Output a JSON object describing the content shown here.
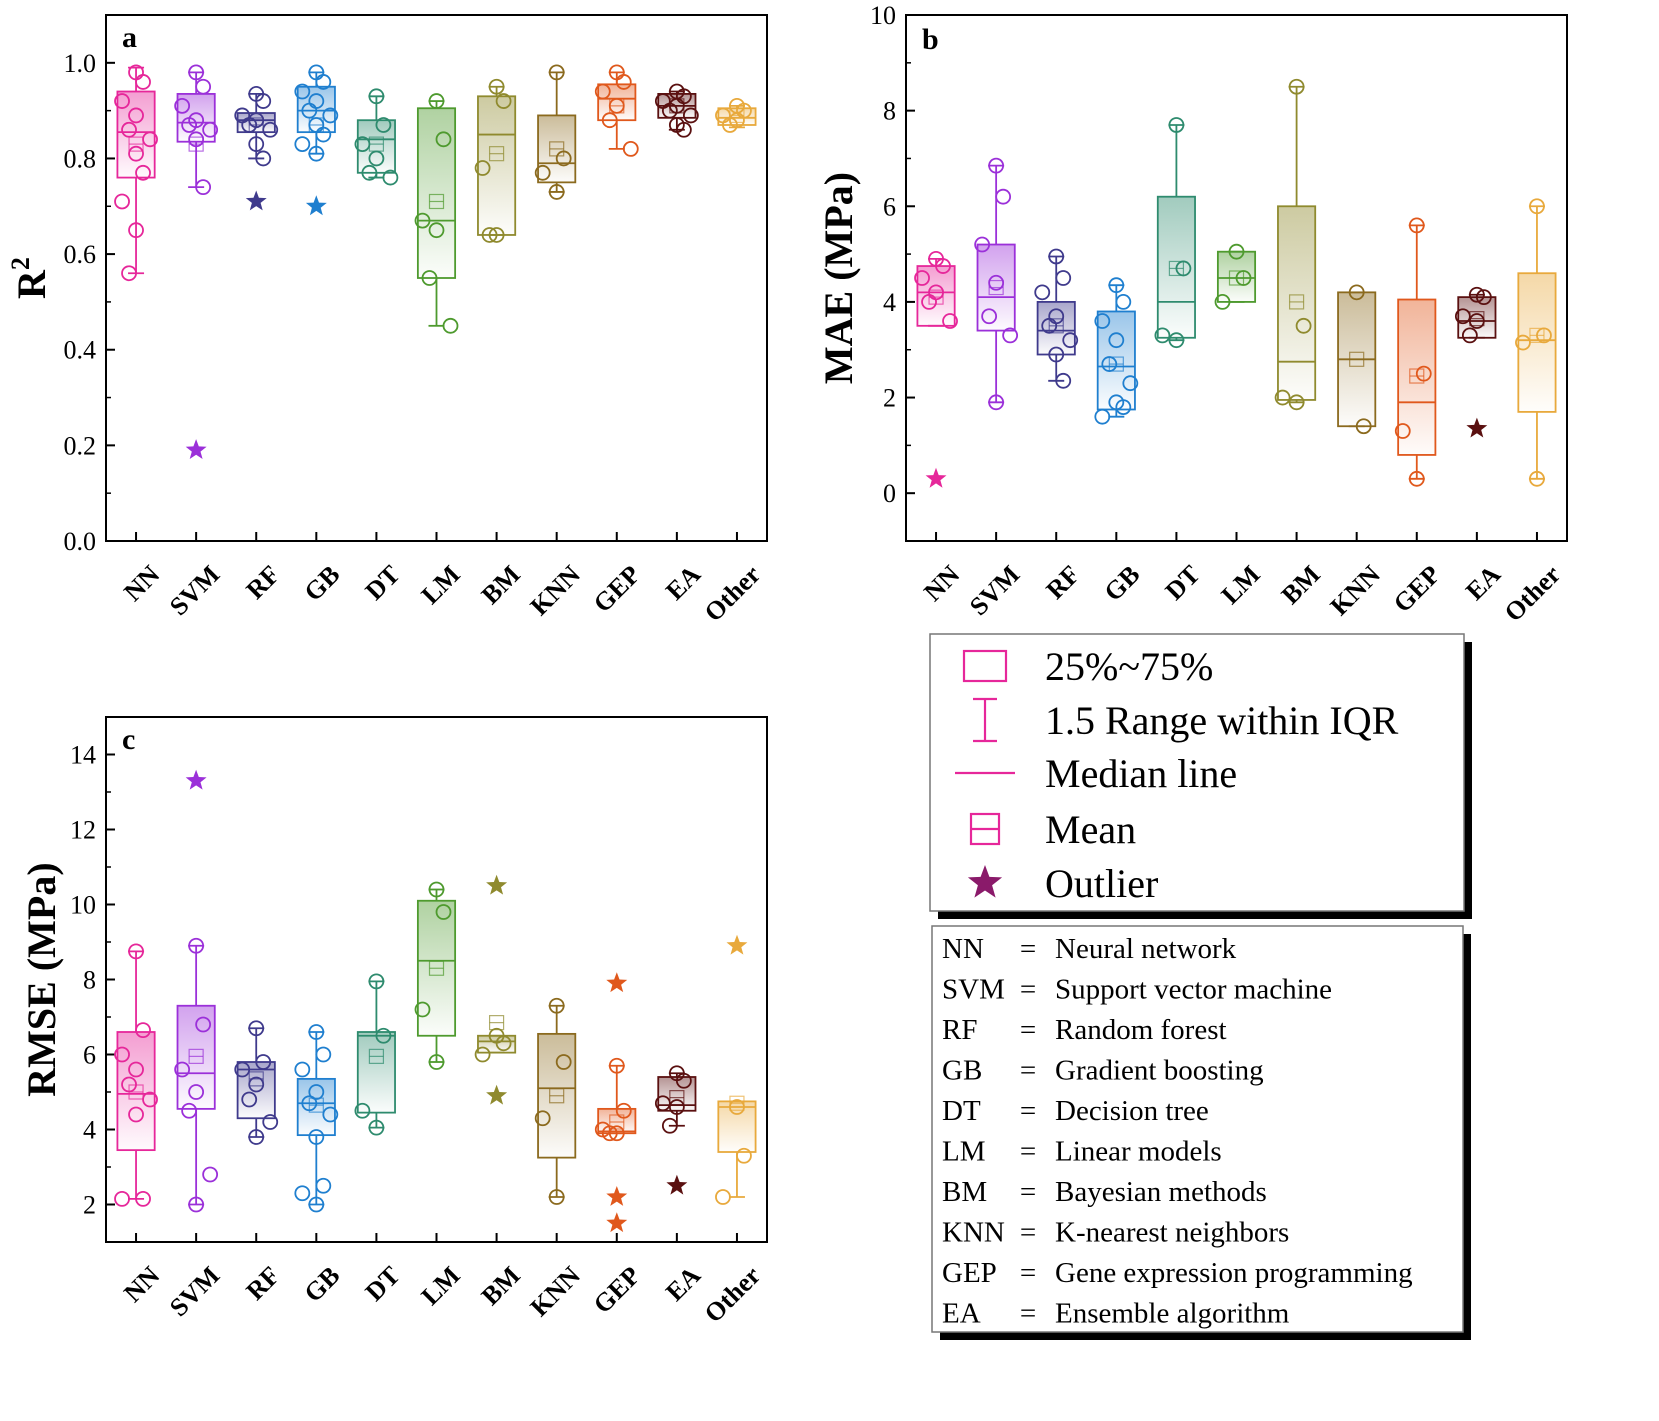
{
  "colors": {
    "NN": "#e6279a",
    "SVM": "#9b30d9",
    "RF": "#3f3a8c",
    "GB": "#1f7fcf",
    "DT": "#2e8b6e",
    "LM": "#4e9a2e",
    "BM": "#8f8a2e",
    "KNN": "#8b6a1e",
    "GEP": "#e0581c",
    "EA": "#5a1010",
    "Other": "#e8a93c"
  },
  "categories": [
    "NN",
    "SVM",
    "RF",
    "GB",
    "DT",
    "LM",
    "BM",
    "KNN",
    "GEP",
    "EA",
    "Other"
  ],
  "chart_data": [
    {
      "type": "box",
      "panel": "a",
      "ylabel": "R",
      "ylabel_sup": "2",
      "ylim": [
        0.0,
        1.1
      ],
      "yticks": [
        "0.0",
        "0.2",
        "0.4",
        "0.6",
        "0.8",
        "1.0"
      ],
      "boxes": [
        {
          "cat": "NN",
          "q1": 0.76,
          "median": 0.855,
          "q3": 0.94,
          "mean": 0.83,
          "wlo": 0.56,
          "whi": 0.99,
          "points": [
            0.98,
            0.96,
            0.92,
            0.89,
            0.86,
            0.84,
            0.81,
            0.77,
            0.71,
            0.65,
            0.56
          ],
          "outliers": []
        },
        {
          "cat": "SVM",
          "q1": 0.835,
          "median": 0.875,
          "q3": 0.935,
          "mean": 0.83,
          "wlo": 0.74,
          "whi": 0.98,
          "points": [
            0.98,
            0.95,
            0.91,
            0.88,
            0.87,
            0.86,
            0.84,
            0.74
          ],
          "outliers": [
            0.19
          ]
        },
        {
          "cat": "RF",
          "q1": 0.855,
          "median": 0.88,
          "q3": 0.895,
          "mean": 0.87,
          "wlo": 0.8,
          "whi": 0.935,
          "points": [
            0.935,
            0.92,
            0.89,
            0.88,
            0.87,
            0.86,
            0.83,
            0.8
          ],
          "outliers": [
            0.71
          ]
        },
        {
          "cat": "GB",
          "q1": 0.855,
          "median": 0.9,
          "q3": 0.95,
          "mean": 0.87,
          "wlo": 0.81,
          "whi": 0.98,
          "points": [
            0.98,
            0.96,
            0.94,
            0.92,
            0.9,
            0.89,
            0.87,
            0.85,
            0.83,
            0.81
          ],
          "outliers": [
            0.7
          ]
        },
        {
          "cat": "DT",
          "q1": 0.77,
          "median": 0.84,
          "q3": 0.88,
          "mean": 0.83,
          "wlo": 0.76,
          "whi": 0.93,
          "points": [
            0.93,
            0.87,
            0.83,
            0.8,
            0.77,
            0.76
          ],
          "outliers": []
        },
        {
          "cat": "LM",
          "q1": 0.55,
          "median": 0.67,
          "q3": 0.905,
          "mean": 0.71,
          "wlo": 0.45,
          "whi": 0.92,
          "points": [
            0.92,
            0.84,
            0.67,
            0.65,
            0.55,
            0.45
          ],
          "outliers": []
        },
        {
          "cat": "BM",
          "q1": 0.64,
          "median": 0.85,
          "q3": 0.93,
          "mean": 0.81,
          "wlo": 0.64,
          "whi": 0.95,
          "points": [
            0.95,
            0.92,
            0.78,
            0.64,
            0.64
          ],
          "outliers": []
        },
        {
          "cat": "KNN",
          "q1": 0.75,
          "median": 0.79,
          "q3": 0.89,
          "mean": 0.82,
          "wlo": 0.73,
          "whi": 0.98,
          "points": [
            0.98,
            0.8,
            0.77,
            0.73
          ],
          "outliers": []
        },
        {
          "cat": "GEP",
          "q1": 0.88,
          "median": 0.925,
          "q3": 0.955,
          "mean": 0.91,
          "wlo": 0.82,
          "whi": 0.98,
          "points": [
            0.98,
            0.96,
            0.94,
            0.91,
            0.88,
            0.82
          ],
          "outliers": []
        },
        {
          "cat": "EA",
          "q1": 0.885,
          "median": 0.91,
          "q3": 0.935,
          "mean": 0.91,
          "wlo": 0.86,
          "whi": 0.94,
          "points": [
            0.94,
            0.93,
            0.92,
            0.91,
            0.9,
            0.89,
            0.87,
            0.86
          ],
          "outliers": []
        },
        {
          "cat": "Other",
          "q1": 0.87,
          "median": 0.885,
          "q3": 0.905,
          "mean": 0.89,
          "wlo": 0.865,
          "whi": 0.91,
          "points": [
            0.91,
            0.9,
            0.89,
            0.88,
            0.87
          ],
          "outliers": []
        }
      ]
    },
    {
      "type": "box",
      "panel": "b",
      "ylabel": "MAE (MPa)",
      "ylim": [
        -1,
        10
      ],
      "yticks": [
        "0",
        "2",
        "4",
        "6",
        "8",
        "10"
      ],
      "boxes": [
        {
          "cat": "NN",
          "q1": 3.5,
          "median": 4.2,
          "q3": 4.75,
          "mean": 4.1,
          "wlo": 3.5,
          "whi": 4.9,
          "points": [
            4.9,
            4.75,
            4.5,
            4.2,
            4.0,
            3.6
          ],
          "outliers": [
            0.3
          ]
        },
        {
          "cat": "SVM",
          "q1": 3.4,
          "median": 4.1,
          "q3": 5.2,
          "mean": 4.3,
          "wlo": 1.9,
          "whi": 6.85,
          "points": [
            6.85,
            6.2,
            5.2,
            4.4,
            3.7,
            3.3,
            1.9
          ],
          "outliers": []
        },
        {
          "cat": "RF",
          "q1": 2.9,
          "median": 3.4,
          "q3": 4.0,
          "mean": 3.5,
          "wlo": 2.35,
          "whi": 4.95,
          "points": [
            4.95,
            4.5,
            4.2,
            3.7,
            3.5,
            3.2,
            2.9,
            2.35
          ],
          "outliers": []
        },
        {
          "cat": "GB",
          "q1": 1.75,
          "median": 2.65,
          "q3": 3.8,
          "mean": 2.7,
          "wlo": 1.6,
          "whi": 4.35,
          "points": [
            4.35,
            4.0,
            3.6,
            3.2,
            2.7,
            2.3,
            1.9,
            1.8,
            1.6
          ],
          "outliers": []
        },
        {
          "cat": "DT",
          "q1": 3.25,
          "median": 4.0,
          "q3": 6.2,
          "mean": 4.7,
          "wlo": 3.2,
          "whi": 7.7,
          "points": [
            7.7,
            4.7,
            3.3,
            3.2
          ],
          "outliers": []
        },
        {
          "cat": "LM",
          "q1": 4.0,
          "median": 4.5,
          "q3": 5.05,
          "mean": 4.5,
          "wlo": 4.0,
          "whi": 5.05,
          "points": [
            5.05,
            4.5,
            4.0
          ],
          "outliers": []
        },
        {
          "cat": "BM",
          "q1": 1.95,
          "median": 2.75,
          "q3": 6.0,
          "mean": 4.0,
          "wlo": 1.9,
          "whi": 8.5,
          "points": [
            8.5,
            3.5,
            2.0,
            1.9
          ],
          "outliers": []
        },
        {
          "cat": "KNN",
          "q1": 1.4,
          "median": 2.8,
          "q3": 4.2,
          "mean": 2.8,
          "wlo": 1.4,
          "whi": 4.2,
          "points": [
            4.2,
            1.4
          ],
          "outliers": []
        },
        {
          "cat": "GEP",
          "q1": 0.8,
          "median": 1.9,
          "q3": 4.05,
          "mean": 2.45,
          "wlo": 0.3,
          "whi": 5.6,
          "points": [
            5.6,
            2.5,
            1.3,
            0.3
          ],
          "outliers": []
        },
        {
          "cat": "EA",
          "q1": 3.25,
          "median": 3.6,
          "q3": 4.1,
          "mean": 3.65,
          "wlo": 3.25,
          "whi": 4.15,
          "points": [
            4.15,
            4.1,
            3.7,
            3.6,
            3.3
          ],
          "outliers": [
            1.35
          ]
        },
        {
          "cat": "Other",
          "q1": 1.7,
          "median": 3.2,
          "q3": 4.6,
          "mean": 3.3,
          "wlo": 0.3,
          "whi": 6.0,
          "points": [
            6.0,
            3.3,
            3.15,
            0.3
          ],
          "outliers": []
        }
      ]
    },
    {
      "type": "box",
      "panel": "c",
      "ylabel": "RMSE (MPa)",
      "ylim": [
        1,
        15
      ],
      "yticks": [
        "2",
        "4",
        "6",
        "8",
        "10",
        "12",
        "14"
      ],
      "boxes": [
        {
          "cat": "NN",
          "q1": 3.45,
          "median": 4.95,
          "q3": 6.6,
          "mean": 5.0,
          "wlo": 2.15,
          "whi": 8.75,
          "points": [
            8.75,
            6.65,
            6.0,
            5.6,
            5.2,
            4.8,
            4.4,
            2.15,
            2.15
          ],
          "outliers": []
        },
        {
          "cat": "SVM",
          "q1": 4.55,
          "median": 5.5,
          "q3": 7.3,
          "mean": 5.95,
          "wlo": 2.0,
          "whi": 8.9,
          "points": [
            8.9,
            6.8,
            5.6,
            5.0,
            4.5,
            2.8,
            2.0
          ],
          "outliers": [
            13.3
          ]
        },
        {
          "cat": "RF",
          "q1": 4.3,
          "median": 5.6,
          "q3": 5.8,
          "mean": 5.35,
          "wlo": 3.8,
          "whi": 6.7,
          "points": [
            6.7,
            5.8,
            5.6,
            5.2,
            4.8,
            4.2,
            3.8
          ],
          "outliers": []
        },
        {
          "cat": "GB",
          "q1": 3.85,
          "median": 4.7,
          "q3": 5.35,
          "mean": 4.65,
          "wlo": 2.0,
          "whi": 6.6,
          "points": [
            6.6,
            6.0,
            5.6,
            5.0,
            4.7,
            4.4,
            3.8,
            2.5,
            2.3,
            2.0
          ],
          "outliers": []
        },
        {
          "cat": "DT",
          "q1": 4.45,
          "median": 6.5,
          "q3": 6.6,
          "mean": 5.95,
          "wlo": 4.05,
          "whi": 7.95,
          "points": [
            7.95,
            6.5,
            4.5,
            4.05
          ],
          "outliers": []
        },
        {
          "cat": "LM",
          "q1": 6.5,
          "median": 8.5,
          "q3": 10.1,
          "mean": 8.3,
          "wlo": 5.8,
          "whi": 10.4,
          "points": [
            10.4,
            9.8,
            7.2,
            5.8
          ],
          "outliers": []
        },
        {
          "cat": "BM",
          "q1": 6.05,
          "median": 6.35,
          "q3": 6.5,
          "mean": 6.85,
          "wlo": 6.05,
          "whi": 6.5,
          "points": [
            6.5,
            6.3,
            6.0
          ],
          "outliers": [
            10.5,
            4.9
          ]
        },
        {
          "cat": "KNN",
          "q1": 3.25,
          "median": 5.1,
          "q3": 6.55,
          "mean": 4.9,
          "wlo": 2.2,
          "whi": 7.3,
          "points": [
            7.3,
            5.8,
            4.3,
            2.2
          ],
          "outliers": []
        },
        {
          "cat": "GEP",
          "q1": 3.9,
          "median": 3.95,
          "q3": 4.55,
          "mean": 4.2,
          "wlo": 3.9,
          "whi": 5.7,
          "points": [
            5.7,
            4.5,
            4.0,
            3.9,
            3.9
          ],
          "outliers": [
            7.9,
            2.2,
            1.5
          ]
        },
        {
          "cat": "EA",
          "q1": 4.5,
          "median": 4.65,
          "q3": 5.4,
          "mean": 4.85,
          "wlo": 4.1,
          "whi": 5.5,
          "points": [
            5.5,
            5.3,
            4.7,
            4.6,
            4.1
          ],
          "outliers": [
            2.5
          ]
        },
        {
          "cat": "Other",
          "q1": 3.4,
          "median": 4.6,
          "q3": 4.75,
          "mean": 4.7,
          "wlo": 2.2,
          "whi": 4.75,
          "points": [
            4.6,
            3.3,
            2.2
          ],
          "outliers": [
            8.9
          ]
        }
      ]
    }
  ],
  "legend": {
    "items": [
      {
        "symbol": "box",
        "label": "25%~75%"
      },
      {
        "symbol": "whisker",
        "label": "1.5 Range within IQR"
      },
      {
        "symbol": "line",
        "label": "Median line"
      },
      {
        "symbol": "mean",
        "label": "Mean"
      },
      {
        "symbol": "star",
        "label": "Outlier"
      }
    ],
    "color": "#e6279a",
    "star_color": "#8a1a6a"
  },
  "abbreviations": [
    {
      "abbr": "NN",
      "sep": "=",
      "full": "Neural network"
    },
    {
      "abbr": "SVM",
      "sep": "=",
      "full": "Support vector machine"
    },
    {
      "abbr": "RF",
      "sep": "=",
      "full": "Random forest"
    },
    {
      "abbr": "GB",
      "sep": "=",
      "full": "Gradient boosting"
    },
    {
      "abbr": "DT",
      "sep": "=",
      "full": "Decision tree"
    },
    {
      "abbr": "LM",
      "sep": "=",
      "full": "Linear models"
    },
    {
      "abbr": "BM",
      "sep": "=",
      "full": "Bayesian methods"
    },
    {
      "abbr": "KNN",
      "sep": "=",
      "full": "K-nearest neighbors"
    },
    {
      "abbr": "GEP",
      "sep": "=",
      "full": "Gene expression programming"
    },
    {
      "abbr": "EA",
      "sep": "=",
      "full": "Ensemble algorithm"
    }
  ]
}
